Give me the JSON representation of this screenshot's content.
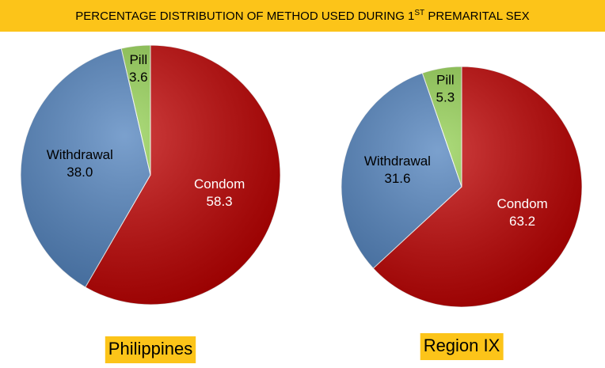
{
  "title": {
    "main": "PERCENTAGE DISTRIBUTION OF METHOD USED DURING 1",
    "sup": "ST",
    "rest": " PREMARITAL SEX"
  },
  "chart_data": [
    {
      "type": "pie",
      "caption": "Philippines",
      "categories": [
        "Condom",
        "Withdrawal",
        "Pill"
      ],
      "values": [
        58.3,
        38.0,
        3.6
      ],
      "value_labels": [
        "58.3",
        "38.0",
        "3.6"
      ],
      "colors": [
        "#c00000",
        "#4f81bd",
        "#92d050"
      ],
      "label_colors": [
        "#ffffff",
        "#000000",
        "#000000"
      ]
    },
    {
      "type": "pie",
      "caption": "Region IX",
      "categories": [
        "Condom",
        "Withdrawal",
        "Pill"
      ],
      "values": [
        63.2,
        31.6,
        5.3
      ],
      "value_labels": [
        "63.2",
        "31.6",
        "5.3"
      ],
      "colors": [
        "#c00000",
        "#4f81bd",
        "#92d050"
      ],
      "label_colors": [
        "#ffffff",
        "#000000",
        "#000000"
      ]
    }
  ]
}
